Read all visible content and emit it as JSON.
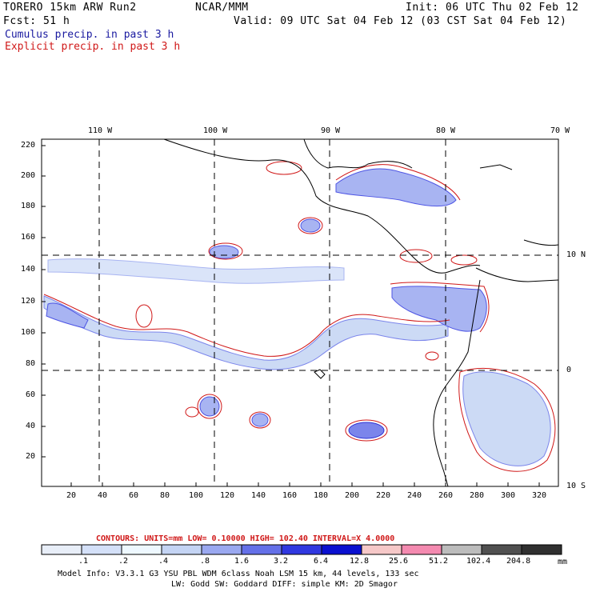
{
  "header": {
    "model": "TORERO  15km ARW   Run2",
    "org": "NCAR/MMM",
    "init": "Init: 06 UTC Thu 02 Feb 12",
    "fcst": "Fcst:   51 h",
    "valid": "Valid: 09 UTC Sat 04 Feb 12 (03 CST Sat 04 Feb 12)"
  },
  "legend_lines": {
    "cumulus": "Cumulus precip. in past 3 h",
    "explicit": "Explicit precip. in past 3 h"
  },
  "map": {
    "top_lon_labels": [
      "110 W",
      "100 W",
      "90 W",
      "80 W",
      "70 W"
    ],
    "right_lat_labels": [
      "10 N",
      "0",
      "10 S"
    ],
    "left_ticks": [
      "220",
      "200",
      "180",
      "160",
      "140",
      "120",
      "100",
      "80",
      "60",
      "40",
      "20"
    ],
    "bottom_ticks": [
      "20",
      "40",
      "60",
      "80",
      "100",
      "120",
      "140",
      "160",
      "180",
      "200",
      "220",
      "240",
      "260",
      "280",
      "300",
      "320"
    ]
  },
  "contours_line": "CONTOURS:  UNITS=mm  LOW= 0.10000      HIGH=  102.40      INTERVAL=X  4.0000",
  "colorbar": {
    "colors": [
      "#ffffff",
      "#e8eef8",
      "#d4e0f8",
      "#eef8ff",
      "#c4d4f4",
      "#9aa8f0",
      "#6470e8",
      "#3038e0",
      "#0a10d0",
      "#f6c8c8",
      "#f48ab0",
      "#bcbcbc",
      "#505050",
      "#303030",
      "#d8a8f0"
    ],
    "labels": [
      ".1",
      ".2",
      ".4",
      ".8",
      "1.6",
      "3.2",
      "6.4",
      "12.8",
      "25.6",
      "51.2",
      "102.4",
      "204.8"
    ],
    "units": "mm"
  },
  "footer": {
    "line1": "Model Info: V3.3.1    G3      YSU PBL   WDM 6class  Noah LSM  15 km,    44 levels,  133 sec",
    "line2": "LW: Godd SW: Goddard DIFF: simple KM: 2D Smagor"
  },
  "colors": {
    "cumulus": "#1a1aa0",
    "explicit": "#d01818",
    "grid": "#000000"
  }
}
